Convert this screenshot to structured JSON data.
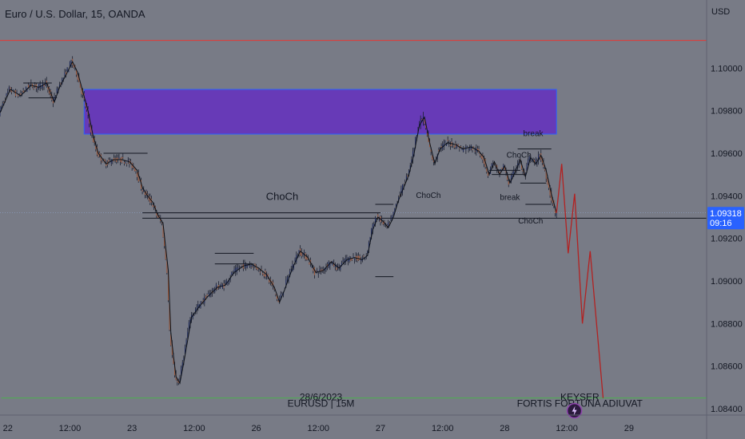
{
  "chart_data": {
    "type": "candlestick",
    "symbol_title": "Euro / U.S. Dollar, 15, OANDA",
    "currency": "USD",
    "price_axis": {
      "range": [
        1.0837,
        1.1032
      ],
      "ticks": [
        "1.10000",
        "1.09800",
        "1.09600",
        "1.09400",
        "1.09200",
        "1.09000",
        "1.08800",
        "1.08600",
        "1.08400"
      ]
    },
    "time_axis": {
      "range_bars": [
        -6,
        540
      ],
      "labels": [
        {
          "text": "22",
          "bar": 0
        },
        {
          "text": "12:00",
          "bar": 48
        },
        {
          "text": "23",
          "bar": 96
        },
        {
          "text": "12:00",
          "bar": 144
        },
        {
          "text": "26",
          "bar": 192
        },
        {
          "text": "12:00",
          "bar": 240
        },
        {
          "text": "27",
          "bar": 288
        },
        {
          "text": "12:00",
          "bar": 336
        },
        {
          "text": "28",
          "bar": 384
        },
        {
          "text": "12:00",
          "bar": 432
        },
        {
          "text": "29",
          "bar": 480
        }
      ]
    },
    "price_trail": [
      [
        -6,
        1.0979
      ],
      [
        2,
        1.099
      ],
      [
        10,
        1.0987
      ],
      [
        18,
        1.0992
      ],
      [
        24,
        1.0991
      ],
      [
        30,
        1.0993
      ],
      [
        36,
        1.0984
      ],
      [
        40,
        1.0991
      ],
      [
        46,
        1.0998
      ],
      [
        50,
        1.1003
      ],
      [
        54,
        1.0998
      ],
      [
        58,
        1.0989
      ],
      [
        62,
        1.098
      ],
      [
        66,
        1.0968
      ],
      [
        70,
        1.096
      ],
      [
        76,
        1.0955
      ],
      [
        82,
        1.0957
      ],
      [
        88,
        1.0957
      ],
      [
        94,
        1.0956
      ],
      [
        100,
        1.0952
      ],
      [
        104,
        1.0944
      ],
      [
        108,
        1.094
      ],
      [
        112,
        1.0937
      ],
      [
        116,
        1.0931
      ],
      [
        120,
        1.0927
      ],
      [
        124,
        1.0905
      ],
      [
        126,
        1.0876
      ],
      [
        128,
        1.0865
      ],
      [
        130,
        1.0855
      ],
      [
        133,
        1.0852
      ],
      [
        137,
        1.0865
      ],
      [
        142,
        1.0883
      ],
      [
        148,
        1.0888
      ],
      [
        155,
        1.0893
      ],
      [
        162,
        1.0897
      ],
      [
        168,
        1.0898
      ],
      [
        175,
        1.0904
      ],
      [
        182,
        1.0907
      ],
      [
        188,
        1.0908
      ],
      [
        194,
        1.0906
      ],
      [
        200,
        1.0903
      ],
      [
        206,
        1.0897
      ],
      [
        210,
        1.089
      ],
      [
        214,
        1.0896
      ],
      [
        220,
        1.0906
      ],
      [
        226,
        1.0914
      ],
      [
        232,
        1.0911
      ],
      [
        238,
        1.0904
      ],
      [
        244,
        1.0905
      ],
      [
        250,
        1.0909
      ],
      [
        256,
        1.0906
      ],
      [
        262,
        1.091
      ],
      [
        268,
        1.0911
      ],
      [
        274,
        1.091
      ],
      [
        278,
        1.0912
      ],
      [
        282,
        1.0924
      ],
      [
        286,
        1.093
      ],
      [
        290,
        1.0928
      ],
      [
        294,
        1.0925
      ],
      [
        298,
        1.093
      ],
      [
        302,
        1.0938
      ],
      [
        306,
        1.0944
      ],
      [
        310,
        1.095
      ],
      [
        314,
        1.096
      ],
      [
        318,
        1.0973
      ],
      [
        322,
        1.0977
      ],
      [
        326,
        1.0965
      ],
      [
        330,
        1.0955
      ],
      [
        334,
        1.0962
      ],
      [
        340,
        1.0965
      ],
      [
        346,
        1.0964
      ],
      [
        352,
        1.0962
      ],
      [
        358,
        1.0963
      ],
      [
        364,
        1.0961
      ],
      [
        368,
        1.0958
      ],
      [
        372,
        1.095
      ],
      [
        376,
        1.0956
      ],
      [
        380,
        1.095
      ],
      [
        384,
        1.0954
      ],
      [
        388,
        1.0946
      ],
      [
        392,
        1.0951
      ],
      [
        396,
        1.0957
      ],
      [
        400,
        1.0949
      ],
      [
        404,
        1.0958
      ],
      [
        408,
        1.0955
      ],
      [
        412,
        1.0959
      ],
      [
        416,
        1.0952
      ],
      [
        420,
        1.0941
      ],
      [
        424,
        1.0932
      ]
    ],
    "forecast_path": [
      [
        424,
        1.0932
      ],
      [
        428,
        1.0955
      ],
      [
        433,
        1.0913
      ],
      [
        438,
        1.0941
      ],
      [
        444,
        1.088
      ],
      [
        450,
        1.0914
      ],
      [
        460,
        1.0845
      ]
    ],
    "supply_zone": {
      "bar_start": 59,
      "bar_end": 424,
      "price_top": 1.099,
      "price_bottom": 1.0969
    },
    "structure_lines": [
      {
        "bars": [
          74,
          108
        ],
        "price": 1.096
      },
      {
        "bars": [
          104,
          288
        ],
        "price": 1.0932
      },
      {
        "bars": [
          284,
          298
        ],
        "price": 1.0936
      },
      {
        "bars": [
          284,
          298
        ],
        "price": 1.0902
      },
      {
        "bars": [
          160,
          190
        ],
        "price": 1.0913
      },
      {
        "bars": [
          160,
          190
        ],
        "price": 1.0908
      },
      {
        "bars": [
          12,
          34
        ],
        "price": 1.0993
      },
      {
        "bars": [
          16,
          38
        ],
        "price": 1.0986
      },
      {
        "bars": [
          372,
          396
        ],
        "price": 1.0952
      },
      {
        "bars": [
          374,
          400
        ],
        "price": 1.095
      },
      {
        "bars": [
          394,
          420
        ],
        "price": 1.0962
      },
      {
        "bars": [
          396,
          416
        ],
        "price": 1.0946
      },
      {
        "bars": [
          400,
          420
        ],
        "price": 1.0936
      }
    ],
    "horizontal_levels": {
      "resistance": 1.1013,
      "current_line": 1.09295,
      "support": 1.0845
    },
    "current_price": {
      "price": "1.09318",
      "countdown": "09:16"
    },
    "annotations": [
      {
        "id": "choch_main",
        "text": "ChoCh",
        "bar": 212,
        "price": 1.0938
      },
      {
        "id": "choch_a",
        "text": "ChoCh",
        "bar": 325,
        "price": 1.0939
      },
      {
        "id": "choch_b",
        "text": "ChoCh",
        "bar": 395,
        "price": 1.0958
      },
      {
        "id": "break_a",
        "text": "break",
        "bar": 406,
        "price": 1.0968
      },
      {
        "id": "break_b",
        "text": "break",
        "bar": 388,
        "price": 1.0938
      },
      {
        "id": "choch_c",
        "text": "ChoCh",
        "bar": 404,
        "price": 1.0927
      },
      {
        "id": "date",
        "text": "28/6/2023",
        "bar": 242,
        "price": 1.0844
      },
      {
        "id": "pair",
        "text": "EURUSD | 15M",
        "bar": 242,
        "price": 1.0841
      },
      {
        "id": "keyser",
        "text": "KEYSER",
        "bar": 442,
        "price": 1.0844
      },
      {
        "id": "fortis",
        "text": "FORTIS FORTUNA ADIUVAT",
        "bar": 442,
        "price": 1.0841
      }
    ],
    "colors": {
      "background": "#787b86",
      "candle_bull": "#1e2a5c",
      "candle_bear": "#a05a3c",
      "trail": "#0d1117",
      "supply_zone": "#673ab7",
      "supply_zone_border": "#2962ff",
      "forecast": "#b22222",
      "resistance": "#e53935",
      "support": "#4caf50",
      "current_label": "#2962ff"
    }
  }
}
